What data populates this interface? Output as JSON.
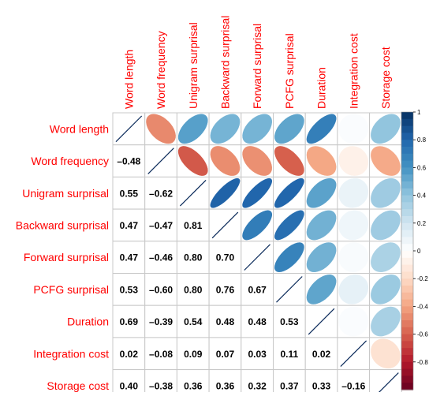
{
  "colors": {
    "label": "#ff0000",
    "grid": "#c8c8c8",
    "diag_line": "#0a2a5a",
    "number_text": "#000000",
    "scale_stops": [
      "#67001f",
      "#b2182b",
      "#d6604d",
      "#f4a582",
      "#fddbc7",
      "#ffffff",
      "#d1e5f0",
      "#92c5de",
      "#4393c3",
      "#2166ac",
      "#053061"
    ]
  },
  "chart_data": {
    "type": "heatmap",
    "variables": [
      "Word length",
      "Word frequency",
      "Unigram surprisal",
      "Backward surprisal",
      "Forward surprisal",
      "PCFG surprisal",
      "Duration",
      "Integration cost",
      "Storage cost"
    ],
    "matrix": [
      [
        1.0,
        -0.48,
        0.55,
        0.47,
        0.47,
        0.53,
        0.69,
        0.02,
        0.4
      ],
      [
        -0.48,
        1.0,
        -0.62,
        -0.47,
        -0.46,
        -0.6,
        -0.39,
        -0.08,
        -0.38
      ],
      [
        0.55,
        -0.62,
        1.0,
        0.81,
        0.8,
        0.8,
        0.54,
        0.09,
        0.36
      ],
      [
        0.47,
        -0.47,
        0.81,
        1.0,
        0.7,
        0.76,
        0.48,
        0.07,
        0.36
      ],
      [
        0.47,
        -0.46,
        0.8,
        0.7,
        1.0,
        0.67,
        0.48,
        0.03,
        0.32
      ],
      [
        0.53,
        -0.6,
        0.8,
        0.76,
        0.67,
        1.0,
        0.53,
        0.11,
        0.37
      ],
      [
        0.69,
        -0.39,
        0.54,
        0.48,
        0.48,
        0.53,
        1.0,
        0.02,
        0.33
      ],
      [
        0.02,
        -0.08,
        0.09,
        0.07,
        0.03,
        0.11,
        0.02,
        1.0,
        -0.16
      ],
      [
        0.4,
        -0.38,
        0.36,
        0.36,
        0.32,
        0.37,
        0.33,
        -0.16,
        1.0
      ]
    ],
    "upper_triangle": "ellipse",
    "lower_triangle": "number",
    "diagonal": "line",
    "color_scale": {
      "range": [
        -1,
        1
      ],
      "tick_labels": [
        "1",
        "0.8",
        "0.6",
        "0.4",
        "0.2",
        "0",
        "-0.2",
        "-0.4",
        "-0.6",
        "-0.8"
      ]
    },
    "grid": true
  }
}
